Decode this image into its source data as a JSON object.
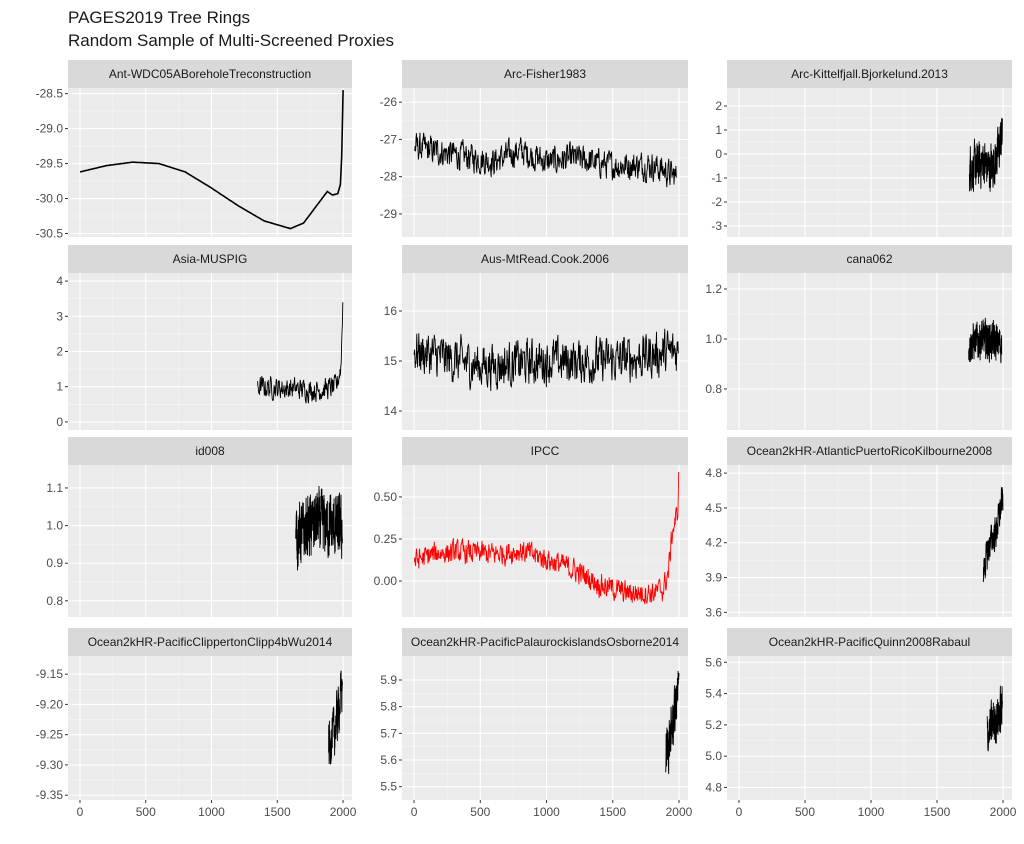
{
  "chart_data": {
    "type": "line",
    "title": "PAGES2019 Tree Rings",
    "subtitle": "Random Sample of Multi-Screened Proxies",
    "xlabel": "",
    "ylabel": "",
    "xlim": [
      -91,
      2068
    ],
    "x_ticks": [
      "0",
      "500",
      "1000",
      "1500",
      "2000"
    ],
    "x_tick_values": [
      0,
      500,
      1000,
      1500,
      2000
    ],
    "grid": true,
    "facets": [
      {
        "name": "Ant-WDC05ABoreholeTreconstruction",
        "color": "#000000",
        "ylim": [
          -30.55,
          -28.42
        ],
        "y_ticks": [
          -28.5,
          -29.0,
          -29.5,
          -30.0,
          -30.5
        ],
        "y_tick_labels": [
          "-28.5",
          "-29.0",
          "-29.5",
          "-30.0",
          "-30.5"
        ],
        "start": 0,
        "end": 2000,
        "noise": 0,
        "points": [
          [
            0,
            -29.62
          ],
          [
            200,
            -29.53
          ],
          [
            400,
            -29.48
          ],
          [
            600,
            -29.5
          ],
          [
            800,
            -29.62
          ],
          [
            1000,
            -29.85
          ],
          [
            1200,
            -30.1
          ],
          [
            1400,
            -30.32
          ],
          [
            1600,
            -30.43
          ],
          [
            1700,
            -30.35
          ],
          [
            1800,
            -30.1
          ],
          [
            1880,
            -29.9
          ],
          [
            1920,
            -29.95
          ],
          [
            1960,
            -29.93
          ],
          [
            1980,
            -29.8
          ],
          [
            1990,
            -29.4
          ],
          [
            1995,
            -28.9
          ],
          [
            2000,
            -28.45
          ]
        ]
      },
      {
        "name": "Arc-Fisher1983",
        "color": "#000000",
        "ylim": [
          -29.62,
          -25.62
        ],
        "y_ticks": [
          -26,
          -27,
          -28,
          -29
        ],
        "y_tick_labels": [
          "-26",
          "-27",
          "-28",
          "-29"
        ],
        "start": 0,
        "end": 1980,
        "noise": 0.55,
        "points": [
          [
            0,
            -27.2
          ],
          [
            300,
            -27.4
          ],
          [
            600,
            -27.6
          ],
          [
            800,
            -27.3
          ],
          [
            1000,
            -27.6
          ],
          [
            1200,
            -27.5
          ],
          [
            1500,
            -27.7
          ],
          [
            1800,
            -27.7
          ],
          [
            1980,
            -28.0
          ]
        ]
      },
      {
        "name": "Arc-Kittelfjall.Bjorkelund.2013",
        "color": "#000000",
        "ylim": [
          -3.46,
          2.75
        ],
        "y_ticks": [
          2,
          1,
          0,
          -1,
          -2,
          -3
        ],
        "y_tick_labels": [
          "2",
          "1",
          "0",
          "-1",
          "-2",
          "-3"
        ],
        "start": 1745,
        "end": 1995,
        "noise": 1.4,
        "points": [
          [
            1745,
            -0.5
          ],
          [
            1800,
            -0.6
          ],
          [
            1850,
            -0.3
          ],
          [
            1900,
            -0.6
          ],
          [
            1950,
            -0.2
          ],
          [
            1995,
            0.8
          ]
        ]
      },
      {
        "name": "Asia-MUSPIG",
        "color": "#000000",
        "ylim": [
          -0.23,
          4.23
        ],
        "y_ticks": [
          4,
          3,
          2,
          1,
          0
        ],
        "y_tick_labels": [
          "4",
          "3",
          "2",
          "1",
          "0"
        ],
        "start": 1350,
        "end": 2000,
        "noise": 0.45,
        "points": [
          [
            1350,
            1.0
          ],
          [
            1600,
            0.95
          ],
          [
            1800,
            0.9
          ],
          [
            1950,
            1.0
          ],
          [
            1985,
            1.6
          ],
          [
            2000,
            3.7
          ]
        ]
      },
      {
        "name": "Aus-MtRead.Cook.2006",
        "color": "#000000",
        "ylim": [
          13.62,
          16.76
        ],
        "y_ticks": [
          16,
          15,
          14
        ],
        "y_tick_labels": [
          "16",
          "15",
          "14"
        ],
        "start": 0,
        "end": 1995,
        "noise": 0.65,
        "points": [
          [
            0,
            15.2
          ],
          [
            500,
            14.9
          ],
          [
            1000,
            15.0
          ],
          [
            1500,
            15.0
          ],
          [
            1995,
            15.2
          ]
        ]
      },
      {
        "name": "cana062",
        "color": "#000000",
        "ylim": [
          0.636,
          1.264
        ],
        "y_ticks": [
          1.2,
          1.0,
          0.8
        ],
        "y_tick_labels": [
          "1.2",
          "1.0",
          "0.8"
        ],
        "start": 1740,
        "end": 1990,
        "noise": 0.11,
        "points": [
          [
            1740,
            0.98
          ],
          [
            1850,
            1.0
          ],
          [
            1990,
            0.98
          ]
        ]
      },
      {
        "name": "id008",
        "color": "#000000",
        "ylim": [
          0.757,
          1.161
        ],
        "y_ticks": [
          1.1,
          1.0,
          0.9,
          0.8
        ],
        "y_tick_labels": [
          "1.1",
          "1.0",
          "0.9",
          "0.8"
        ],
        "start": 1640,
        "end": 1995,
        "noise": 0.12,
        "points": [
          [
            1640,
            0.97
          ],
          [
            1800,
            1.01
          ],
          [
            1995,
            0.99
          ]
        ]
      },
      {
        "name": "IPCC",
        "color": "#ff0000",
        "ylim": [
          -0.214,
          0.69
        ],
        "y_ticks": [
          0.5,
          0.25,
          0.0
        ],
        "y_tick_labels": [
          "0.50",
          "0.25",
          "0.00"
        ],
        "start": 0,
        "end": 2000,
        "noise": 0.1,
        "points": [
          [
            0,
            0.12
          ],
          [
            200,
            0.17
          ],
          [
            400,
            0.17
          ],
          [
            600,
            0.16
          ],
          [
            800,
            0.18
          ],
          [
            1000,
            0.13
          ],
          [
            1200,
            0.07
          ],
          [
            1400,
            -0.02
          ],
          [
            1600,
            -0.07
          ],
          [
            1800,
            -0.07
          ],
          [
            1880,
            -0.05
          ],
          [
            1920,
            0.05
          ],
          [
            1950,
            0.3
          ],
          [
            1990,
            0.4
          ],
          [
            2000,
            0.65
          ]
        ]
      },
      {
        "name": "Ocean2kHR-AtlanticPuertoRicoKilbourne2008",
        "color": "#000000",
        "ylim": [
          3.56,
          4.87
        ],
        "y_ticks": [
          4.8,
          4.5,
          4.2,
          3.9,
          3.6
        ],
        "y_tick_labels": [
          "4.8",
          "4.5",
          "4.2",
          "3.9",
          "3.6"
        ],
        "start": 1850,
        "end": 2000,
        "noise": 0.2,
        "points": [
          [
            1850,
            3.95
          ],
          [
            1900,
            4.2
          ],
          [
            1950,
            4.3
          ],
          [
            2000,
            4.6
          ]
        ]
      },
      {
        "name": "Ocean2kHR-PacificClippertonClipp4bWu2014",
        "color": "#000000",
        "ylim": [
          -9.358,
          -9.12
        ],
        "y_ticks": [
          -9.15,
          -9.2,
          -9.25,
          -9.3,
          -9.35
        ],
        "y_tick_labels": [
          "-9.15",
          "-9.20",
          "-9.25",
          "-9.30",
          "-9.35"
        ],
        "start": 1890,
        "end": 1995,
        "noise": 0.06,
        "points": [
          [
            1890,
            -9.27
          ],
          [
            1940,
            -9.24
          ],
          [
            1995,
            -9.17
          ]
        ]
      },
      {
        "name": "Ocean2kHR-PacificPalaurockislandsOsborne2014",
        "color": "#000000",
        "ylim": [
          5.45,
          5.99
        ],
        "y_ticks": [
          5.9,
          5.8,
          5.7,
          5.6,
          5.5
        ],
        "y_tick_labels": [
          "5.9",
          "5.8",
          "5.7",
          "5.6",
          "5.5"
        ],
        "start": 1900,
        "end": 2000,
        "noise": 0.14,
        "points": [
          [
            1900,
            5.62
          ],
          [
            1950,
            5.72
          ],
          [
            2000,
            5.88
          ]
        ]
      },
      {
        "name": "Ocean2kHR-PacificQuinn2008Rabaul",
        "color": "#000000",
        "ylim": [
          4.72,
          5.64
        ],
        "y_ticks": [
          5.6,
          5.4,
          5.2,
          5.0,
          4.8
        ],
        "y_tick_labels": [
          "5.6",
          "5.4",
          "5.2",
          "5.0",
          "4.8"
        ],
        "start": 1880,
        "end": 1995,
        "noise": 0.22,
        "points": [
          [
            1880,
            5.15
          ],
          [
            1940,
            5.22
          ],
          [
            1995,
            5.3
          ]
        ]
      }
    ]
  }
}
